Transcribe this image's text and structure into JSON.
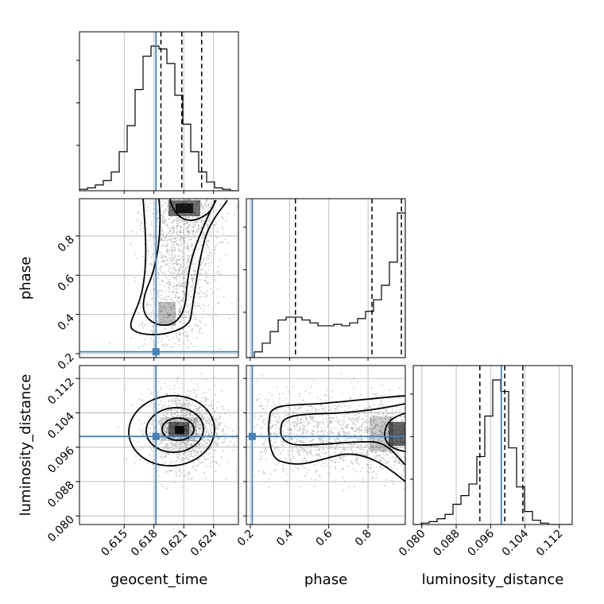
{
  "chart_data": {
    "type": "corner",
    "parameters": [
      {
        "name": "geocent_time",
        "label": "geocent_time",
        "range": [
          0.6105,
          0.6265
        ],
        "ticks": [
          0.615,
          0.618,
          0.621,
          0.624
        ],
        "tick_labels": [
          "0.615",
          "0.618",
          "0.621",
          "0.624"
        ],
        "truth": 0.6182,
        "quantiles": [
          0.6187,
          0.6208,
          0.6228
        ],
        "histogram": [
          0.01,
          0.02,
          0.04,
          0.07,
          0.13,
          0.27,
          0.45,
          0.7,
          0.93,
          1.0,
          0.98,
          0.88,
          0.66,
          0.46,
          0.27,
          0.13,
          0.06,
          0.02,
          0.01,
          0.0
        ]
      },
      {
        "name": "phase",
        "label": "phase",
        "range": [
          0.18,
          0.99
        ],
        "ticks": [
          0.2,
          0.4,
          0.6,
          0.8
        ],
        "tick_labels": [
          "0.2",
          "0.4",
          "0.6",
          "0.8"
        ],
        "truth": 0.21,
        "quantiles": [
          0.43,
          0.82,
          0.97
        ],
        "histogram": [
          0.0,
          0.04,
          0.1,
          0.18,
          0.26,
          0.28,
          0.28,
          0.26,
          0.24,
          0.22,
          0.22,
          0.23,
          0.22,
          0.24,
          0.27,
          0.32,
          0.4,
          0.5,
          0.66,
          1.0
        ]
      },
      {
        "name": "luminosity_distance",
        "label": "luminosity_distance",
        "range": [
          0.078,
          0.115
        ],
        "ticks": [
          0.08,
          0.088,
          0.096,
          0.104,
          0.112
        ],
        "tick_labels": [
          "0.080",
          "0.088",
          "0.096",
          "0.104",
          "0.112"
        ],
        "truth": 0.0985,
        "quantiles": [
          0.0935,
          0.0993,
          0.1035
        ],
        "histogram": [
          0.0,
          0.01,
          0.02,
          0.04,
          0.07,
          0.14,
          0.2,
          0.28,
          0.47,
          0.75,
          1.0,
          0.92,
          0.53,
          0.26,
          0.09,
          0.03,
          0.01,
          0.0,
          0.0,
          0.0
        ]
      }
    ],
    "grid": true,
    "colors": {
      "truth": "#4682b4",
      "line": "#000000",
      "grid": "#b0b0b0",
      "points": "#9a9a9a"
    }
  }
}
